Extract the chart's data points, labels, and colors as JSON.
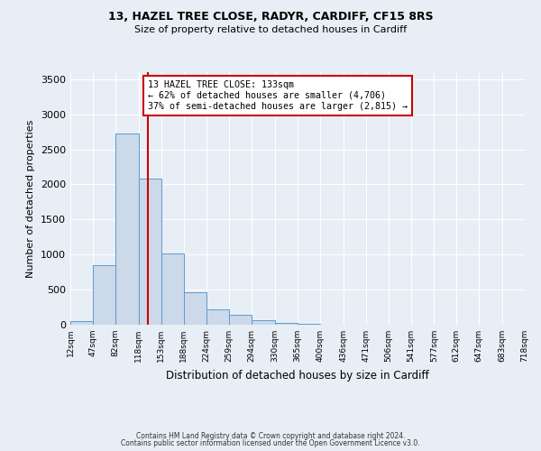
{
  "title1": "13, HAZEL TREE CLOSE, RADYR, CARDIFF, CF15 8RS",
  "title2": "Size of property relative to detached houses in Cardiff",
  "xlabel": "Distribution of detached houses by size in Cardiff",
  "ylabel": "Number of detached properties",
  "bin_edges": [
    12,
    47,
    82,
    118,
    153,
    188,
    224,
    259,
    294,
    330,
    365,
    400,
    436,
    471,
    506,
    541,
    577,
    612,
    647,
    683,
    718
  ],
  "bar_heights": [
    50,
    850,
    2730,
    2080,
    1010,
    460,
    215,
    145,
    60,
    20,
    15,
    5,
    2,
    0,
    0,
    0,
    0,
    0,
    0,
    0
  ],
  "bar_color": "#ccd9e8",
  "bar_edgecolor": "#5b9bd5",
  "property_line_x": 133,
  "property_line_color": "#cc0000",
  "annotation_text": "13 HAZEL TREE CLOSE: 133sqm\n← 62% of detached houses are smaller (4,706)\n37% of semi-detached houses are larger (2,815) →",
  "annotation_box_edgecolor": "#cc0000",
  "ylim": [
    0,
    3600
  ],
  "yticks": [
    0,
    500,
    1000,
    1500,
    2000,
    2500,
    3000,
    3500
  ],
  "footer1": "Contains HM Land Registry data © Crown copyright and database right 2024.",
  "footer2": "Contains public sector information licensed under the Open Government Licence v3.0.",
  "bg_color": "#e8eef5",
  "plot_bg_color": "#e8eef5"
}
